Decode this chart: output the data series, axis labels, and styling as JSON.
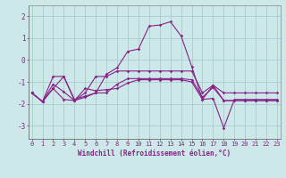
{
  "xlabel": "Windchill (Refroidissement éolien,°C)",
  "bg": "#cce8e8",
  "lc": "#882288",
  "gc": "#aacccc",
  "x": [
    0,
    1,
    2,
    3,
    4,
    5,
    6,
    7,
    8,
    9,
    10,
    11,
    12,
    13,
    14,
    15,
    16,
    17,
    18,
    19,
    20,
    21,
    22,
    23
  ],
  "s1": [
    -1.5,
    -1.9,
    -0.75,
    -0.75,
    -1.8,
    -1.65,
    -1.5,
    -0.65,
    -0.35,
    0.4,
    0.5,
    1.55,
    1.6,
    1.75,
    1.1,
    -0.3,
    -1.8,
    -1.15,
    -1.85,
    -1.85,
    -1.85,
    -1.85,
    -1.85,
    -1.85
  ],
  "s2": [
    -1.5,
    -1.9,
    -1.1,
    -1.45,
    -1.85,
    -1.7,
    -1.5,
    -1.5,
    -1.1,
    -0.85,
    -0.85,
    -0.85,
    -0.85,
    -0.85,
    -0.85,
    -0.9,
    -1.7,
    -1.25,
    -1.85,
    -1.85,
    -1.85,
    -1.85,
    -1.85,
    -1.85
  ],
  "s3": [
    -1.5,
    -1.9,
    -1.3,
    -1.8,
    -1.85,
    -1.3,
    -1.4,
    -1.35,
    -1.3,
    -1.05,
    -0.9,
    -0.9,
    -0.9,
    -0.9,
    -0.9,
    -1.0,
    -1.8,
    -1.75,
    -3.1,
    -1.8,
    -1.8,
    -1.8,
    -1.8,
    -1.8
  ],
  "s4": [
    -1.5,
    -1.9,
    -1.3,
    -0.75,
    -1.85,
    -1.5,
    -0.75,
    -0.75,
    -0.5,
    -0.5,
    -0.5,
    -0.5,
    -0.5,
    -0.5,
    -0.5,
    -0.5,
    -1.5,
    -1.15,
    -1.5,
    -1.5,
    -1.5,
    -1.5,
    -1.5,
    -1.5
  ],
  "ylim": [
    -3.6,
    2.5
  ],
  "xlim": [
    -0.3,
    23.3
  ],
  "yticks": [
    -3,
    -2,
    -1,
    0,
    1,
    2
  ],
  "xticks": [
    0,
    1,
    2,
    3,
    4,
    5,
    6,
    7,
    8,
    9,
    10,
    11,
    12,
    13,
    14,
    15,
    16,
    17,
    18,
    19,
    20,
    21,
    22,
    23
  ],
  "tick_fs": 5.0,
  "xlabel_fs": 5.5,
  "lw": 0.8,
  "ms": 1.8
}
